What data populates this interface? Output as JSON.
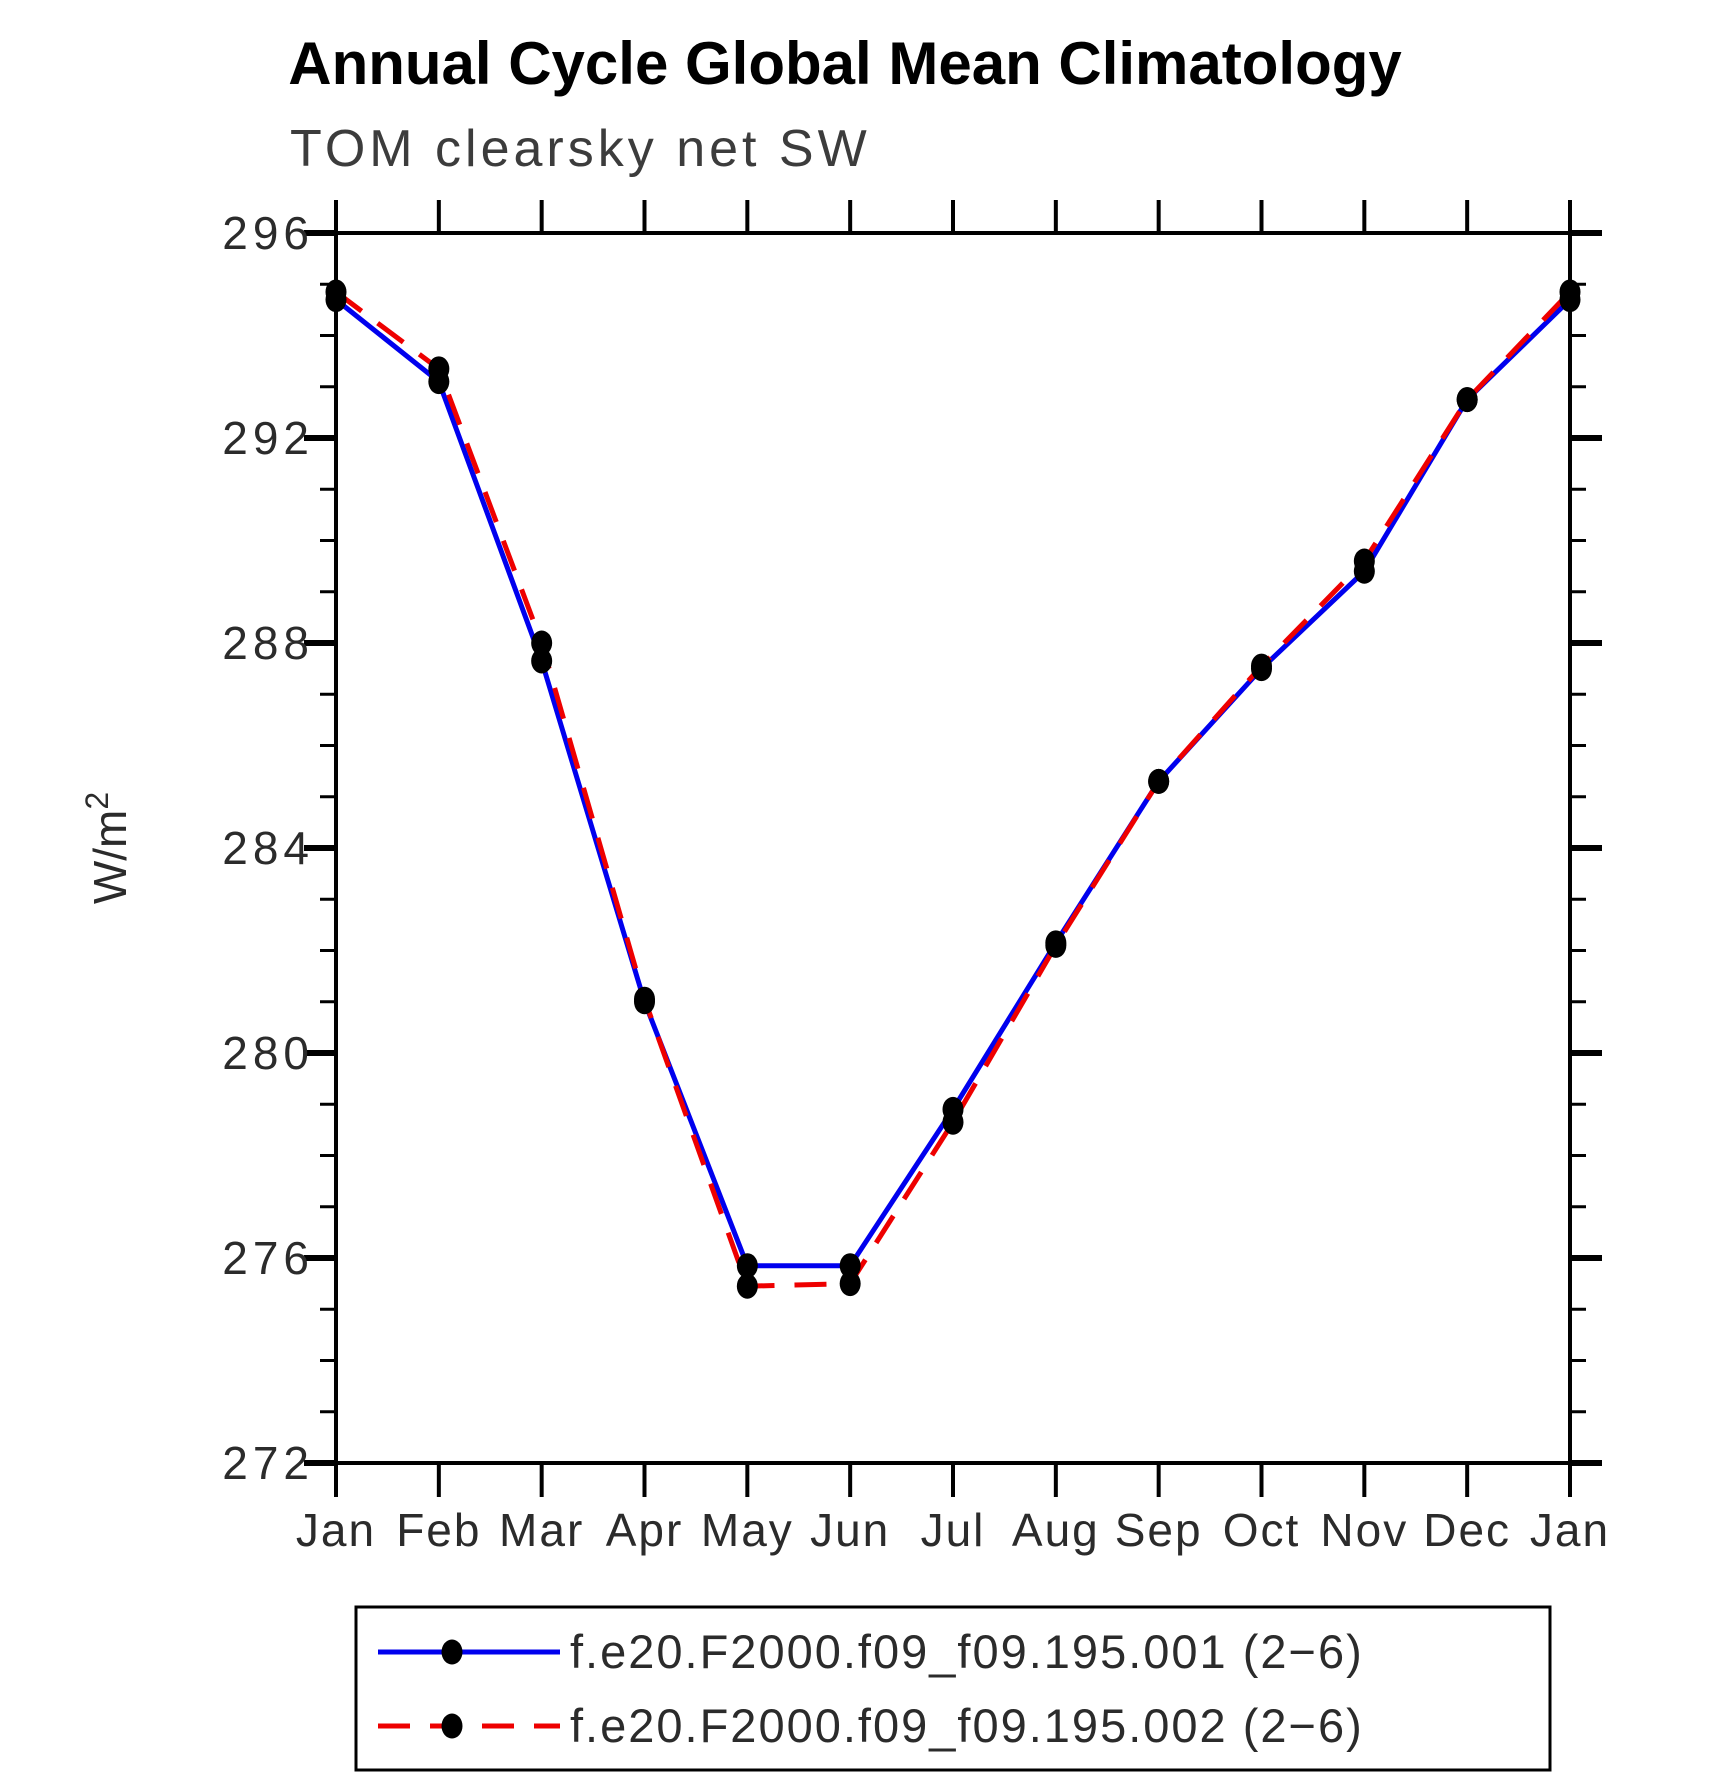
{
  "page": {
    "background": "#ffffff"
  },
  "chart_data": {
    "type": "line",
    "title": "Annual Cycle Global Mean Climatology",
    "subtitle": "TOM clearsky net SW",
    "ylabel": "W/m²",
    "xlabel": "",
    "categories": [
      "Jan",
      "Feb",
      "Mar",
      "Apr",
      "May",
      "Jun",
      "Jul",
      "Aug",
      "Sep",
      "Oct",
      "Nov",
      "Dec",
      "Jan"
    ],
    "ylim": [
      272,
      296
    ],
    "ytick_major_step": 4,
    "ytick_minor_step": 1,
    "ytick_labels": [
      "272",
      "276",
      "280",
      "284",
      "288",
      "292",
      "296"
    ],
    "grid": false,
    "frame_color": "#000000",
    "legend_position": "bottom-box",
    "marker": "filled-circle",
    "marker_color": "#000000",
    "series": [
      {
        "name": "f.e20.F2000.f09_f09.195.001 (2−6)",
        "color": "#0000ee",
        "style": "solid",
        "values": [
          294.7,
          293.1,
          287.65,
          281.0,
          275.85,
          275.85,
          278.9,
          282.15,
          285.3,
          287.5,
          289.4,
          292.75,
          294.7
        ]
      },
      {
        "name": "f.e20.F2000.f09_f09.195.002 (2−6)",
        "color": "#ee0000",
        "style": "dashed",
        "values": [
          294.85,
          293.35,
          288.0,
          281.05,
          275.45,
          275.5,
          278.65,
          282.1,
          285.3,
          287.55,
          289.6,
          292.75,
          294.85
        ]
      }
    ]
  }
}
